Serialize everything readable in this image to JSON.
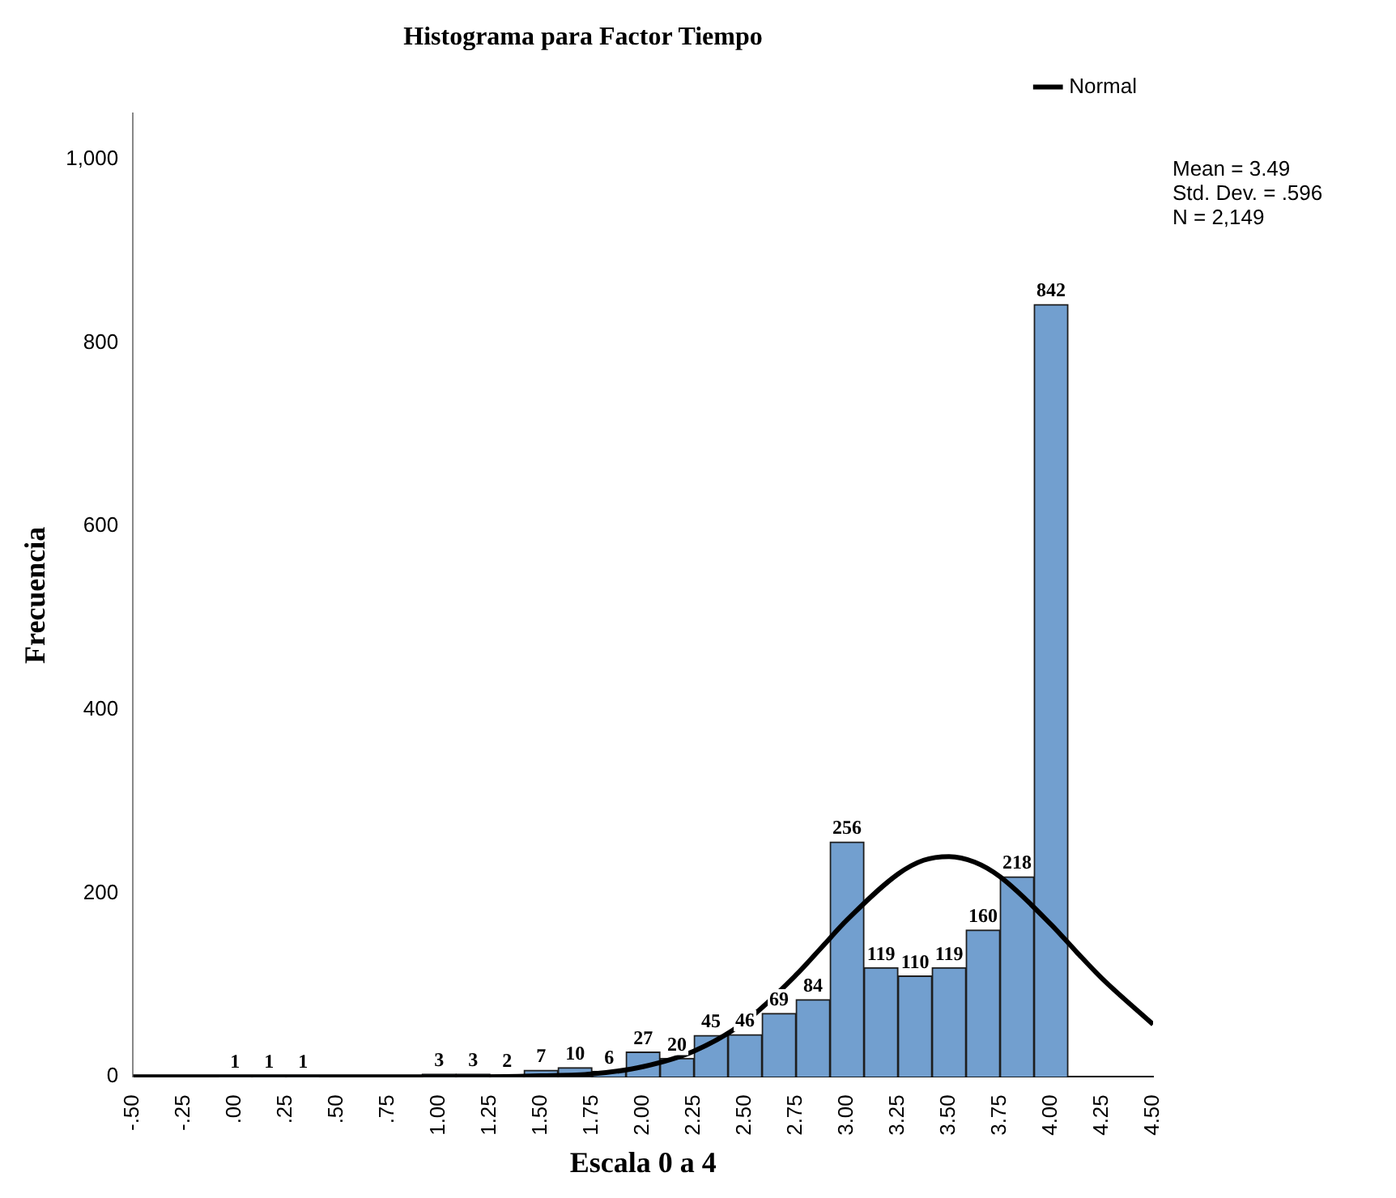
{
  "chart_data": {
    "type": "histogram",
    "title": "Histograma para Factor Tiempo",
    "xlabel": "Escala 0 a 4",
    "ylabel": "Frecuencia",
    "bins": [
      -0.0833,
      0.0833,
      0.25,
      0.4167,
      0.5833,
      0.75,
      0.9167,
      1.0833,
      1.25,
      1.4167,
      1.5833,
      1.75,
      1.9167,
      2.0833,
      2.25,
      2.4167,
      2.5833,
      2.75,
      2.9167,
      3.0833,
      3.25,
      3.4167,
      3.5833,
      3.75,
      3.9167,
      4.0833
    ],
    "values": [
      1,
      1,
      1,
      0,
      0,
      0,
      3,
      3,
      2,
      7,
      10,
      6,
      27,
      20,
      45,
      46,
      69,
      84,
      256,
      119,
      110,
      119,
      160,
      218,
      842
    ],
    "value_labels": [
      "1",
      "1",
      "1",
      null,
      null,
      null,
      "3",
      "3",
      "2",
      "7",
      "10",
      "6",
      "27",
      "20",
      "45",
      "46",
      "69",
      "84",
      "256",
      "119",
      "110",
      "119",
      "160",
      "218",
      "842"
    ],
    "color": "#729fcf",
    "series": [
      {
        "name": "Normal",
        "type": "line",
        "color": "#000000",
        "marker": "none",
        "x": [
          -0.5,
          0,
          0.5,
          1,
          1.25,
          1.5,
          1.75,
          2,
          2.25,
          2.5,
          2.75,
          2.875,
          3,
          3.25,
          3.375,
          3.5,
          3.625,
          3.75,
          4,
          4.125,
          4.25,
          4.5
        ],
        "values": [
          0,
          0,
          0,
          0,
          0,
          1,
          3,
          11,
          28,
          60,
          111,
          141,
          171,
          221,
          236,
          240,
          234,
          218,
          166,
          136,
          107,
          57
        ]
      }
    ],
    "xlim": [
      -0.5,
      4.5
    ],
    "xticks": [
      {
        "value": -0.5,
        "label": "-.50"
      },
      {
        "value": -0.25,
        "label": "-.25"
      },
      {
        "value": 0,
        "label": ".00"
      },
      {
        "value": 0.25,
        "label": ".25"
      },
      {
        "value": 0.5,
        "label": ".50"
      },
      {
        "value": 0.75,
        "label": ".75"
      },
      {
        "value": 1,
        "label": "1.00"
      },
      {
        "value": 1.25,
        "label": "1.25"
      },
      {
        "value": 1.5,
        "label": "1.50"
      },
      {
        "value": 1.75,
        "label": "1.75"
      },
      {
        "value": 2,
        "label": "2.00"
      },
      {
        "value": 2.25,
        "label": "2.25"
      },
      {
        "value": 2.5,
        "label": "2.50"
      },
      {
        "value": 2.75,
        "label": "2.75"
      },
      {
        "value": 3,
        "label": "3.00"
      },
      {
        "value": 3.25,
        "label": "3.25"
      },
      {
        "value": 3.5,
        "label": "3.50"
      },
      {
        "value": 3.75,
        "label": "3.75"
      },
      {
        "value": 4,
        "label": "4.00"
      },
      {
        "value": 4.25,
        "label": "4.25"
      },
      {
        "value": 4.5,
        "label": "4.50"
      }
    ],
    "ylim": [
      0,
      1050
    ],
    "yticks": [
      0,
      200,
      400,
      600,
      800,
      {
        "value": 1000,
        "label": "1,000"
      }
    ],
    "legend": "top right",
    "annotations": [
      "Mean = 3.49",
      "Std. Dev. = .596",
      "N = 2,149"
    ]
  }
}
